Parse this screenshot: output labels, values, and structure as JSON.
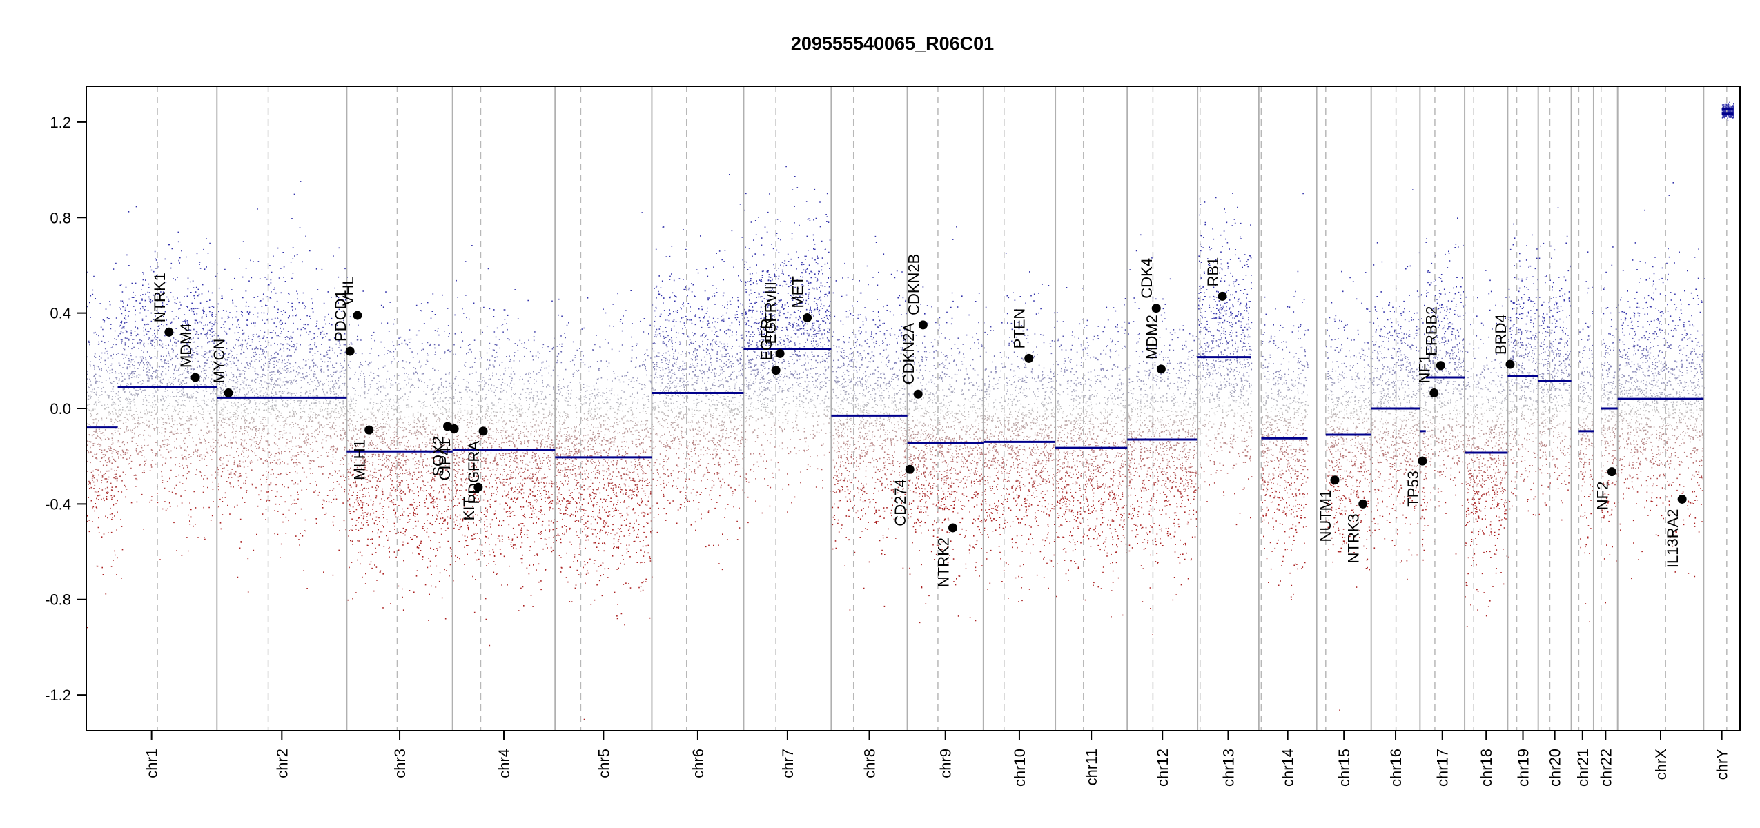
{
  "chart_data": {
    "type": "scatter",
    "title": "209555540065_R06C01",
    "xlabel": "",
    "ylabel": "",
    "ylim": [
      -1.35,
      1.35
    ],
    "yticks": [
      -1.2,
      -0.8,
      -0.4,
      0.0,
      0.4,
      0.8,
      1.2
    ],
    "ytick_labels": [
      "-1.2",
      "-0.8",
      "-0.4",
      "0.0",
      "0.4",
      "0.8",
      "1.2"
    ],
    "grid": false,
    "colors": {
      "gain": "#3333aa",
      "neutral": "#c0c0c0",
      "loss": "#aa2222",
      "segment": "#00008b",
      "gene_point": "#000000",
      "chrom_border": "#b0b0b0",
      "centromere": "#b8b8b8"
    },
    "chromosomes": [
      {
        "name": "chr1",
        "start": 0.0,
        "end": 7.9,
        "centromere": 4.3
      },
      {
        "name": "chr2",
        "start": 7.9,
        "end": 15.75,
        "centromere": 11.0
      },
      {
        "name": "chr3",
        "start": 15.75,
        "end": 22.15,
        "centromere": 18.8
      },
      {
        "name": "chr4",
        "start": 22.15,
        "end": 28.35,
        "centromere": 23.85
      },
      {
        "name": "chr5",
        "start": 28.35,
        "end": 34.2,
        "centromere": 29.9
      },
      {
        "name": "chr6",
        "start": 34.2,
        "end": 39.75,
        "centromere": 36.3
      },
      {
        "name": "chr7",
        "start": 39.75,
        "end": 45.05,
        "centromere": 41.7
      },
      {
        "name": "chr8",
        "start": 45.05,
        "end": 49.65,
        "centromere": 46.4
      },
      {
        "name": "chr9",
        "start": 49.65,
        "end": 54.25,
        "centromere": 51.5
      },
      {
        "name": "chr10",
        "start": 54.25,
        "end": 58.6,
        "centromere": 55.5
      },
      {
        "name": "chr11",
        "start": 58.6,
        "end": 62.95,
        "centromere": 60.3
      },
      {
        "name": "chr12",
        "start": 62.95,
        "end": 67.2,
        "centromere": 64.5
      },
      {
        "name": "chr13",
        "start": 67.2,
        "end": 70.9,
        "centromere": 67.35
      },
      {
        "name": "chr14",
        "start": 70.9,
        "end": 74.4,
        "centromere": 71.05
      },
      {
        "name": "chr15",
        "start": 74.4,
        "end": 77.7,
        "centromere": 74.95
      },
      {
        "name": "chr16",
        "start": 77.7,
        "end": 80.65,
        "centromere": 79.2
      },
      {
        "name": "chr17",
        "start": 80.65,
        "end": 83.35,
        "centromere": 81.55
      },
      {
        "name": "chr18",
        "start": 83.35,
        "end": 85.95,
        "centromere": 83.9
      },
      {
        "name": "chr19",
        "start": 85.95,
        "end": 87.8,
        "centromere": 86.5
      },
      {
        "name": "chr20",
        "start": 87.8,
        "end": 89.8,
        "centromere": 88.5
      },
      {
        "name": "chr21",
        "start": 89.8,
        "end": 91.15,
        "centromere": 90.25
      },
      {
        "name": "chr22",
        "start": 91.15,
        "end": 92.6,
        "centromere": 91.6
      },
      {
        "name": "chrX",
        "start": 92.6,
        "end": 97.8,
        "centromere": 95.5
      },
      {
        "name": "chrY",
        "start": 97.8,
        "end": 100.0,
        "centromere": 99.2
      }
    ],
    "segments": [
      {
        "chr": "chr1",
        "x0": 0.0,
        "x1": 1.9,
        "y": -0.08
      },
      {
        "chr": "chr1",
        "x0": 1.9,
        "x1": 7.9,
        "y": 0.09
      },
      {
        "chr": "chr2",
        "x0": 7.9,
        "x1": 15.75,
        "y": 0.045
      },
      {
        "chr": "chr3",
        "x0": 15.75,
        "x1": 22.15,
        "y": -0.18
      },
      {
        "chr": "chr4",
        "x0": 22.15,
        "x1": 28.35,
        "y": -0.175
      },
      {
        "chr": "chr5",
        "x0": 28.35,
        "x1": 34.2,
        "y": -0.205
      },
      {
        "chr": "chr6",
        "x0": 34.2,
        "x1": 39.75,
        "y": 0.065
      },
      {
        "chr": "chr7",
        "x0": 39.75,
        "x1": 45.05,
        "y": 0.25
      },
      {
        "chr": "chr8",
        "x0": 45.05,
        "x1": 49.65,
        "y": -0.03
      },
      {
        "chr": "chr9",
        "x0": 49.65,
        "x1": 54.25,
        "y": -0.145
      },
      {
        "chr": "chr10",
        "x0": 54.25,
        "x1": 58.6,
        "y": -0.14
      },
      {
        "chr": "chr11",
        "x0": 58.6,
        "x1": 62.95,
        "y": -0.165
      },
      {
        "chr": "chr12",
        "x0": 62.95,
        "x1": 67.2,
        "y": -0.13
      },
      {
        "chr": "chr13",
        "x0": 67.2,
        "x1": 70.45,
        "y": 0.215
      },
      {
        "chr": "chr14",
        "x0": 71.05,
        "x1": 73.85,
        "y": -0.125
      },
      {
        "chr": "chr15",
        "x0": 74.95,
        "x1": 77.7,
        "y": -0.11
      },
      {
        "chr": "chr16",
        "x0": 77.7,
        "x1": 80.65,
        "y": 0.0
      },
      {
        "chr": "chr17",
        "x0": 80.65,
        "x1": 81.0,
        "y": -0.095
      },
      {
        "chr": "chr17",
        "x0": 81.0,
        "x1": 83.35,
        "y": 0.13
      },
      {
        "chr": "chr18",
        "x0": 83.35,
        "x1": 85.95,
        "y": -0.185
      },
      {
        "chr": "chr19",
        "x0": 85.95,
        "x1": 87.8,
        "y": 0.135
      },
      {
        "chr": "chr20",
        "x0": 87.8,
        "x1": 89.8,
        "y": 0.115
      },
      {
        "chr": "chr21",
        "x0": 90.25,
        "x1": 91.15,
        "y": -0.095
      },
      {
        "chr": "chr22",
        "x0": 91.6,
        "x1": 92.6,
        "y": 0.0
      },
      {
        "chr": "chrX",
        "x0": 92.6,
        "x1": 97.8,
        "y": 0.04
      },
      {
        "chr": "chrY",
        "x0": 98.9,
        "x1": 99.6,
        "y": 1.235
      },
      {
        "chr": "chrY",
        "x0": 98.9,
        "x1": 99.6,
        "y": 1.255
      }
    ],
    "genes": [
      {
        "name": "NTRK1",
        "x": 5.0,
        "y": 0.32,
        "label_side": "above"
      },
      {
        "name": "MDM4",
        "x": 6.6,
        "y": 0.13,
        "label_side": "above"
      },
      {
        "name": "MYCN",
        "x": 8.6,
        "y": 0.065,
        "label_side": "above"
      },
      {
        "name": "PDCD1",
        "x": 15.95,
        "y": 0.24,
        "label_side": "above"
      },
      {
        "name": "VHL",
        "x": 16.4,
        "y": 0.39,
        "label_side": "above"
      },
      {
        "name": "MLH1",
        "x": 17.1,
        "y": -0.09,
        "label_side": "below"
      },
      {
        "name": "SOX2",
        "x": 21.85,
        "y": -0.075,
        "label_side": "below"
      },
      {
        "name": "CIP41",
        "x": 22.25,
        "y": -0.085,
        "label_side": "below"
      },
      {
        "name": "KIT",
        "x": 23.7,
        "y": -0.33,
        "label_side": "below"
      },
      {
        "name": "PDGFRA",
        "x": 24.0,
        "y": -0.095,
        "label_side": "below"
      },
      {
        "name": "EGFR",
        "x": 41.7,
        "y": 0.16,
        "label_side": "above"
      },
      {
        "name": "EGFRvIII",
        "x": 41.95,
        "y": 0.23,
        "label_side": "above"
      },
      {
        "name": "MET",
        "x": 43.6,
        "y": 0.38,
        "label_side": "above"
      },
      {
        "name": "CD274",
        "x": 49.8,
        "y": -0.255,
        "label_side": "below"
      },
      {
        "name": "CDKN2A",
        "x": 50.3,
        "y": 0.06,
        "label_side": "above"
      },
      {
        "name": "CDKN2B",
        "x": 50.6,
        "y": 0.35,
        "label_side": "above"
      },
      {
        "name": "NTRK2",
        "x": 52.4,
        "y": -0.5,
        "label_side": "below"
      },
      {
        "name": "PTEN",
        "x": 57.0,
        "y": 0.21,
        "label_side": "above"
      },
      {
        "name": "MDM2",
        "x": 65.0,
        "y": 0.165,
        "label_side": "above"
      },
      {
        "name": "CDK4",
        "x": 64.7,
        "y": 0.42,
        "label_side": "above"
      },
      {
        "name": "RB1",
        "x": 68.7,
        "y": 0.47,
        "label_side": "above"
      },
      {
        "name": "NUTM1",
        "x": 75.5,
        "y": -0.3,
        "label_side": "below"
      },
      {
        "name": "NTRK3",
        "x": 77.2,
        "y": -0.4,
        "label_side": "below"
      },
      {
        "name": "TP53",
        "x": 80.8,
        "y": -0.22,
        "label_side": "below"
      },
      {
        "name": "NF1",
        "x": 81.5,
        "y": 0.065,
        "label_side": "above"
      },
      {
        "name": "ERBB2",
        "x": 81.9,
        "y": 0.18,
        "label_side": "above"
      },
      {
        "name": "BRD4",
        "x": 86.1,
        "y": 0.185,
        "label_side": "above"
      },
      {
        "name": "NF2",
        "x": 92.25,
        "y": -0.265,
        "label_side": "below"
      },
      {
        "name": "IL13RA2",
        "x": 96.5,
        "y": -0.38,
        "label_side": "below"
      }
    ],
    "gene_display_labels": {
      "NTRK1": "NTRK1",
      "MDM4": "MDM4",
      "MYCN": "MYCN",
      "PDCD1": "PDCD1",
      "VHL": "VHL",
      "MLH1": "MLH1",
      "SOX2": "SOX2",
      "CIP41": "CIP41",
      "KIT": "KIT",
      "PDGFRA": "PDGFRA",
      "EGFR": "EGFR",
      "EGFRvIII": "EGFRvIII",
      "MET": "MET",
      "CD274": "CD274",
      "CDKN2A": "CDKN2A",
      "CDKN2B": "CDKN2B",
      "NTRK2": "NTRK2",
      "PTEN": "PTEN",
      "MDM2": "MDM2",
      "CDK4": "CDK4",
      "RB1": "RB1",
      "NUTM1": "NUTM1",
      "NTRK3": "NTRK3",
      "TP53": "TP53",
      "NF1": "NF1",
      "ERBB2": "ERBB2",
      "BRD4": "BRD4",
      "NF2": "NF2",
      "IL13RA2": "IL13RA2"
    }
  }
}
